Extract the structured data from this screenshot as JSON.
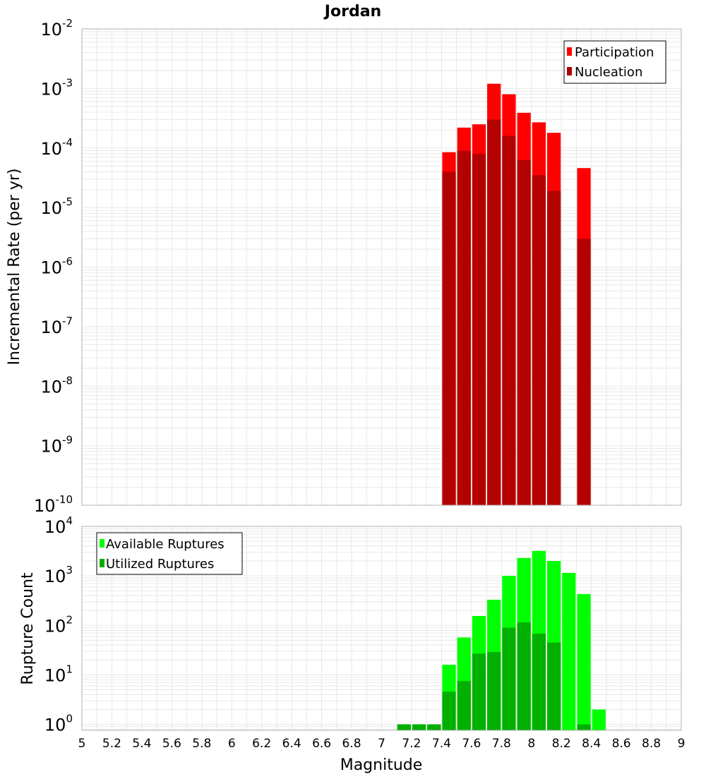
{
  "chart_data": [
    {
      "type": "bar",
      "title": "Jordan",
      "xlabel": "Magnitude",
      "ylabel": "Incremental Rate (per yr)",
      "yscale": "log",
      "xlim": [
        5,
        9
      ],
      "ylim_exp": [
        -10,
        -2
      ],
      "bin_width": 0.1,
      "legend_position": "top-right",
      "series": [
        {
          "name": "Participation",
          "color": "#ff0000",
          "x": [
            7.45,
            7.55,
            7.65,
            7.75,
            7.85,
            7.95,
            8.05,
            8.15,
            8.35
          ],
          "values": [
            8.5e-05,
            0.00022,
            0.00025,
            0.0012,
            0.0008,
            0.00039,
            0.00027,
            0.00018,
            4.6e-05
          ]
        },
        {
          "name": "Nucleation",
          "color": "#b30000",
          "x": [
            7.45,
            7.55,
            7.65,
            7.75,
            7.85,
            7.95,
            8.05,
            8.15,
            8.35
          ],
          "values": [
            4e-05,
            9e-05,
            8e-05,
            0.0003,
            0.00016,
            6.3e-05,
            3.5e-05,
            1.9e-05,
            3e-06
          ]
        }
      ]
    },
    {
      "type": "bar",
      "xlabel": "Magnitude",
      "ylabel": "Rupture Count",
      "yscale": "log",
      "xlim": [
        5,
        9
      ],
      "ylim_exp": [
        -0.12,
        4
      ],
      "bin_width": 0.1,
      "legend_position": "top-left",
      "series": [
        {
          "name": "Available Ruptures",
          "color": "#00ff00",
          "x": [
            7.15,
            7.25,
            7.35,
            7.45,
            7.55,
            7.65,
            7.75,
            7.85,
            7.95,
            8.05,
            8.15,
            8.25,
            8.35,
            8.45
          ],
          "values": [
            1,
            1,
            1,
            16,
            57,
            155,
            330,
            1000,
            2300,
            3200,
            2000,
            1150,
            430,
            2
          ]
        },
        {
          "name": "Utilized Ruptures",
          "color": "#00b000",
          "x": [
            7.15,
            7.25,
            7.35,
            7.45,
            7.55,
            7.65,
            7.75,
            7.85,
            7.95,
            8.05,
            8.15,
            8.25,
            8.35,
            8.45
          ],
          "values": [
            1,
            1,
            1,
            4.6,
            7.5,
            27,
            29,
            90,
            115,
            68,
            45,
            0,
            1,
            0
          ]
        }
      ]
    }
  ],
  "x_ticks": [
    "5",
    "5.2",
    "5.4",
    "5.6",
    "5.8",
    "6",
    "6.2",
    "6.4",
    "6.6",
    "6.8",
    "7",
    "7.2",
    "7.4",
    "7.6",
    "7.8",
    "8",
    "8.2",
    "8.4",
    "8.6",
    "8.8",
    "9"
  ],
  "top_y_ticks": [
    {
      "base": "10",
      "exp": "-10"
    },
    {
      "base": "10",
      "exp": "-9"
    },
    {
      "base": "10",
      "exp": "-8"
    },
    {
      "base": "10",
      "exp": "-7"
    },
    {
      "base": "10",
      "exp": "-6"
    },
    {
      "base": "10",
      "exp": "-5"
    },
    {
      "base": "10",
      "exp": "-4"
    },
    {
      "base": "10",
      "exp": "-3"
    },
    {
      "base": "10",
      "exp": "-2"
    }
  ],
  "bottom_y_ticks": [
    {
      "base": "10",
      "exp": "0"
    },
    {
      "base": "10",
      "exp": "1"
    },
    {
      "base": "10",
      "exp": "2"
    },
    {
      "base": "10",
      "exp": "3"
    },
    {
      "base": "10",
      "exp": "4"
    }
  ],
  "colors": {
    "grid": "#e8e8e8",
    "frame": "#b0b0b0",
    "bar_edge": "#ffffff"
  }
}
